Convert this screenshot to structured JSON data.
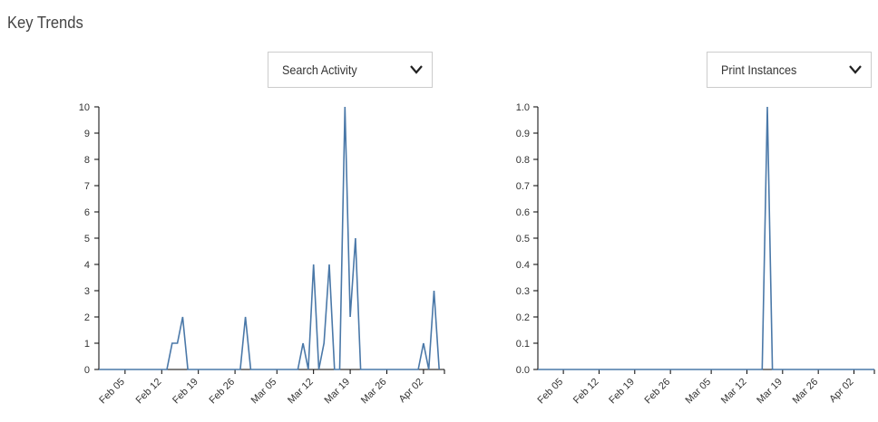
{
  "page": {
    "title": "Key Trends"
  },
  "dropdowns": [
    {
      "selected": "Search Activity"
    },
    {
      "selected": "Print Instances"
    }
  ],
  "icons": {
    "dropdown": "chevron-down-icon"
  },
  "colors": {
    "line": "#4a78a8",
    "axis": "#000000"
  },
  "chart_data": [
    {
      "type": "line",
      "title": "",
      "xlabel": "",
      "ylabel": "",
      "ylim": [
        0,
        10
      ],
      "yticks": [
        "0",
        "1",
        "2",
        "3",
        "4",
        "5",
        "6",
        "7",
        "8",
        "9",
        "10"
      ],
      "xtick_labels": [
        "Feb 05",
        "Feb 12",
        "Feb 19",
        "Feb 26",
        "Mar 05",
        "Mar 12",
        "Mar 19",
        "Mar 26",
        "Apr 02"
      ],
      "xlim": [
        "Jan 31",
        "Apr 06"
      ],
      "grid": false,
      "series": [
        {
          "points": [
            [
              "Jan 31",
              0
            ],
            [
              "Feb 13",
              0
            ],
            [
              "Feb 14",
              1
            ],
            [
              "Feb 15",
              1
            ],
            [
              "Feb 16",
              2
            ],
            [
              "Feb 17",
              0
            ],
            [
              "Feb 27",
              0
            ],
            [
              "Feb 28",
              2
            ],
            [
              "Feb 29",
              0
            ],
            [
              "Mar 09",
              0
            ],
            [
              "Mar 10",
              1
            ],
            [
              "Mar 11",
              0
            ],
            [
              "Mar 12",
              4
            ],
            [
              "Mar 13",
              0
            ],
            [
              "Mar 14",
              1
            ],
            [
              "Mar 15",
              4
            ],
            [
              "Mar 16",
              0
            ],
            [
              "Mar 17",
              0
            ],
            [
              "Mar 18",
              10
            ],
            [
              "Mar 19",
              2
            ],
            [
              "Mar 20",
              5
            ],
            [
              "Mar 21",
              0
            ],
            [
              "Apr 01",
              0
            ],
            [
              "Apr 02",
              1
            ],
            [
              "Apr 03",
              0
            ],
            [
              "Apr 04",
              3
            ],
            [
              "Apr 05",
              0
            ]
          ]
        }
      ]
    },
    {
      "type": "line",
      "title": "",
      "xlabel": "",
      "ylabel": "",
      "ylim": [
        0,
        1
      ],
      "yticks": [
        "0.0",
        "0.1",
        "0.2",
        "0.3",
        "0.4",
        "0.5",
        "0.6",
        "0.7",
        "0.8",
        "0.9",
        "1.0"
      ],
      "xtick_labels": [
        "Feb 05",
        "Feb 12",
        "Feb 19",
        "Feb 26",
        "Mar 05",
        "Mar 12",
        "Mar 19",
        "Mar 26",
        "Apr 02"
      ],
      "xlim": [
        "Jan 31",
        "Apr 06"
      ],
      "grid": false,
      "series": [
        {
          "points": [
            [
              "Jan 31",
              0
            ],
            [
              "Mar 15",
              0
            ],
            [
              "Mar 16",
              1
            ],
            [
              "Mar 17",
              0
            ],
            [
              "Apr 06",
              0
            ]
          ]
        }
      ]
    }
  ]
}
